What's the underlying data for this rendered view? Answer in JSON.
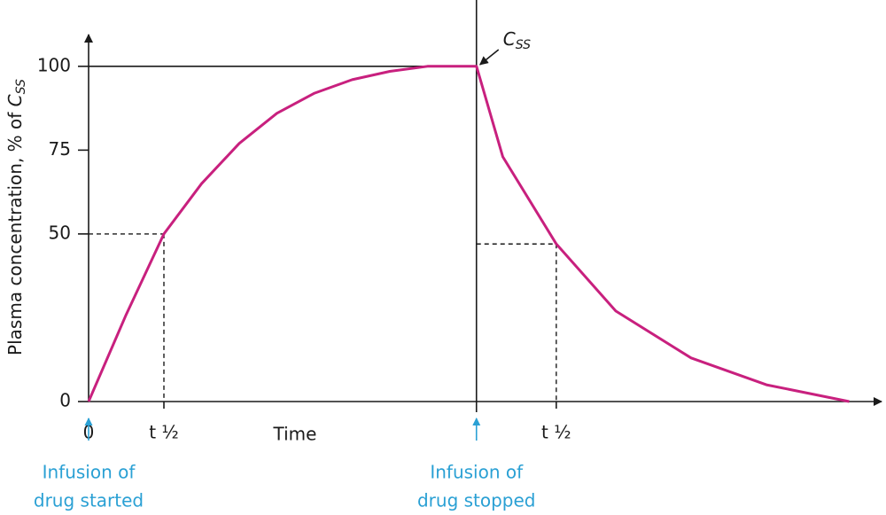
{
  "chart_data": {
    "type": "line",
    "ylabel": {
      "text": "Plasma concentration, % of ",
      "symbol": "C",
      "subscript": "SS"
    },
    "xlabel": "Time",
    "ylim": [
      0,
      110
    ],
    "yticks": [
      0,
      50,
      75,
      100
    ],
    "xlim": [
      0,
      10.6
    ],
    "x_labels": [
      {
        "x": 0,
        "label": "0"
      },
      {
        "x": 1,
        "label": "t ½"
      },
      {
        "x": 6.21,
        "label": "t ½"
      }
    ],
    "series": [
      {
        "color": "#c8207e",
        "x": [
          0,
          0.5,
          1,
          1.5,
          2,
          2.5,
          3,
          3.5,
          4,
          4.5,
          5.15,
          5.5,
          6.21,
          7,
          8,
          9,
          10.1
        ],
        "values": [
          0,
          26,
          50,
          65,
          77,
          86,
          92,
          96,
          98.5,
          100,
          100,
          73,
          47,
          27,
          13,
          5,
          0
        ]
      }
    ],
    "steady_state_line": {
      "value": 100,
      "x": 5.15
    },
    "guides": [
      {
        "x_from": 0,
        "x": 1,
        "y": 50
      },
      {
        "x_from": 5.15,
        "x": 6.21,
        "y": 47
      }
    ],
    "annotation": {
      "symbol": "C",
      "subscript": "SS"
    },
    "events": {
      "color": "#2aa0d4",
      "items": [
        {
          "x": 0,
          "lines": [
            "Infusion of",
            "drug started"
          ]
        },
        {
          "x": 5.15,
          "lines": [
            "Infusion of",
            "drug stopped"
          ]
        }
      ]
    }
  }
}
